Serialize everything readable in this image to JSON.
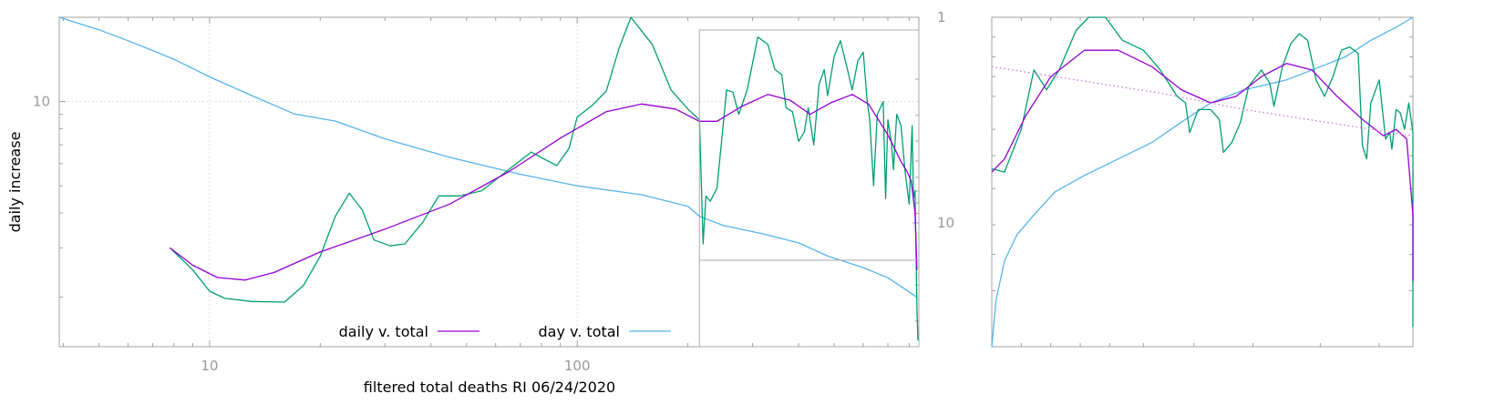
{
  "chart_data": [
    {
      "type": "line",
      "title": "",
      "xlabel": "filtered total deaths RI 06/24/2020",
      "ylabel": "daily increase",
      "xscale": "log",
      "yscale": "log",
      "xlim": [
        3.9,
        850
      ],
      "ylim": [
        1.33,
        20
      ],
      "y2lim": [
        1,
        40
      ],
      "grid": true,
      "legend_position": "bottom-center",
      "x_ticks": [
        {
          "value": 10,
          "label": "10"
        },
        {
          "value": 100,
          "label": "100"
        }
      ],
      "y_ticks": [
        {
          "value": 10,
          "label": "10"
        }
      ],
      "y2_ticks": [
        {
          "value": 1,
          "label": "1"
        },
        {
          "value": 10,
          "label": "10"
        }
      ],
      "series": [
        {
          "name": "daily v. total",
          "color": "#9400d3",
          "points": [
            [
              7.8,
              3.0
            ],
            [
              9,
              2.6
            ],
            [
              10.5,
              2.35
            ],
            [
              12.5,
              2.3
            ],
            [
              15,
              2.45
            ],
            [
              20,
              2.9
            ],
            [
              30,
              3.5
            ],
            [
              45,
              4.3
            ],
            [
              65,
              5.6
            ],
            [
              90,
              7.4
            ],
            [
              120,
              9.2
            ],
            [
              150,
              9.8
            ],
            [
              185,
              9.4
            ],
            [
              215,
              8.5
            ],
            [
              240,
              8.5
            ],
            [
              280,
              9.6
            ],
            [
              330,
              10.6
            ],
            [
              380,
              10.1
            ],
            [
              430,
              9.0
            ],
            [
              490,
              9.9
            ],
            [
              560,
              10.6
            ],
            [
              620,
              9.8
            ],
            [
              700,
              7.6
            ],
            [
              760,
              6.1
            ],
            [
              790,
              5.6
            ],
            [
              810,
              5.2
            ],
            [
              830,
              4.0
            ],
            [
              840,
              2.5
            ]
          ]
        },
        {
          "name": "day v. total",
          "color": "#56b4e9",
          "axis": "y2",
          "points": [
            [
              3.9,
              1.0
            ],
            [
              5,
              1.15
            ],
            [
              6,
              1.3
            ],
            [
              7,
              1.45
            ],
            [
              8,
              1.6
            ],
            [
              10,
              1.95
            ],
            [
              13,
              2.4
            ],
            [
              17,
              2.95
            ],
            [
              22,
              3.2
            ],
            [
              30,
              3.9
            ],
            [
              45,
              4.8
            ],
            [
              70,
              5.8
            ],
            [
              100,
              6.6
            ],
            [
              150,
              7.3
            ],
            [
              200,
              8.3
            ],
            [
              215,
              9.3
            ],
            [
              250,
              10.3
            ],
            [
              320,
              11.3
            ],
            [
              400,
              12.5
            ],
            [
              480,
              14.5
            ],
            [
              600,
              16.5
            ],
            [
              700,
              18.5
            ],
            [
              780,
              21
            ],
            [
              840,
              23
            ]
          ]
        },
        {
          "name": "",
          "color": "#009e73",
          "points": [
            [
              7.8,
              3.0
            ],
            [
              9,
              2.5
            ],
            [
              10,
              2.1
            ],
            [
              11,
              1.98
            ],
            [
              13,
              1.93
            ],
            [
              16,
              1.92
            ],
            [
              18,
              2.2
            ],
            [
              20,
              2.8
            ],
            [
              22,
              3.9
            ],
            [
              24,
              4.7
            ],
            [
              26,
              4.1
            ],
            [
              28,
              3.2
            ],
            [
              31,
              3.05
            ],
            [
              34,
              3.1
            ],
            [
              38,
              3.7
            ],
            [
              42,
              4.6
            ],
            [
              48,
              4.6
            ],
            [
              55,
              4.8
            ],
            [
              65,
              5.7
            ],
            [
              75,
              6.6
            ],
            [
              80,
              6.3
            ],
            [
              88,
              5.9
            ],
            [
              95,
              6.8
            ],
            [
              100,
              8.8
            ],
            [
              110,
              9.7
            ],
            [
              120,
              10.9
            ],
            [
              130,
              15.5
            ],
            [
              140,
              20
            ],
            [
              160,
              16
            ],
            [
              180,
              11
            ],
            [
              200,
              9.4
            ],
            [
              215,
              8.6
            ],
            [
              220,
              3.1
            ],
            [
              224,
              4.6
            ],
            [
              230,
              4.4
            ],
            [
              240,
              4.9
            ],
            [
              255,
              11
            ],
            [
              265,
              10.8
            ],
            [
              275,
              9.0
            ],
            [
              290,
              11
            ],
            [
              310,
              17
            ],
            [
              330,
              16
            ],
            [
              345,
              13
            ],
            [
              360,
              12.5
            ],
            [
              370,
              9.5
            ],
            [
              385,
              9.2
            ],
            [
              400,
              7.2
            ],
            [
              415,
              7.8
            ],
            [
              425,
              9.5
            ],
            [
              440,
              7.0
            ],
            [
              455,
              11.5
            ],
            [
              470,
              13
            ],
            [
              480,
              10.5
            ],
            [
              500,
              14.5
            ],
            [
              520,
              16.5
            ],
            [
              540,
              13.5
            ],
            [
              560,
              11
            ],
            [
              580,
              14
            ],
            [
              600,
              15
            ],
            [
              615,
              10
            ],
            [
              625,
              8.6
            ],
            [
              640,
              5.0
            ],
            [
              655,
              9.0
            ],
            [
              680,
              10
            ],
            [
              690,
              4.5
            ],
            [
              700,
              8.6
            ],
            [
              715,
              7.2
            ],
            [
              725,
              5.7
            ],
            [
              740,
              9
            ],
            [
              760,
              8.2
            ],
            [
              780,
              5.6
            ],
            [
              800,
              4.3
            ],
            [
              815,
              8.2
            ],
            [
              822,
              4.5
            ],
            [
              830,
              4.8
            ],
            [
              840,
              1.8
            ],
            [
              845,
              1.4
            ]
          ]
        }
      ]
    },
    {
      "type": "line",
      "title": "",
      "xlabel": "",
      "ylabel": "",
      "xlim": [
        215,
        850
      ],
      "grid": false,
      "series": [
        {
          "name": "",
          "color": "#9400d3",
          "style": "solid"
        },
        {
          "name": "",
          "color": "#56b4e9",
          "style": "solid"
        },
        {
          "name": "",
          "color": "#009e73",
          "style": "solid"
        },
        {
          "name": "",
          "color": "#d070e0",
          "style": "dotted"
        }
      ]
    }
  ]
}
